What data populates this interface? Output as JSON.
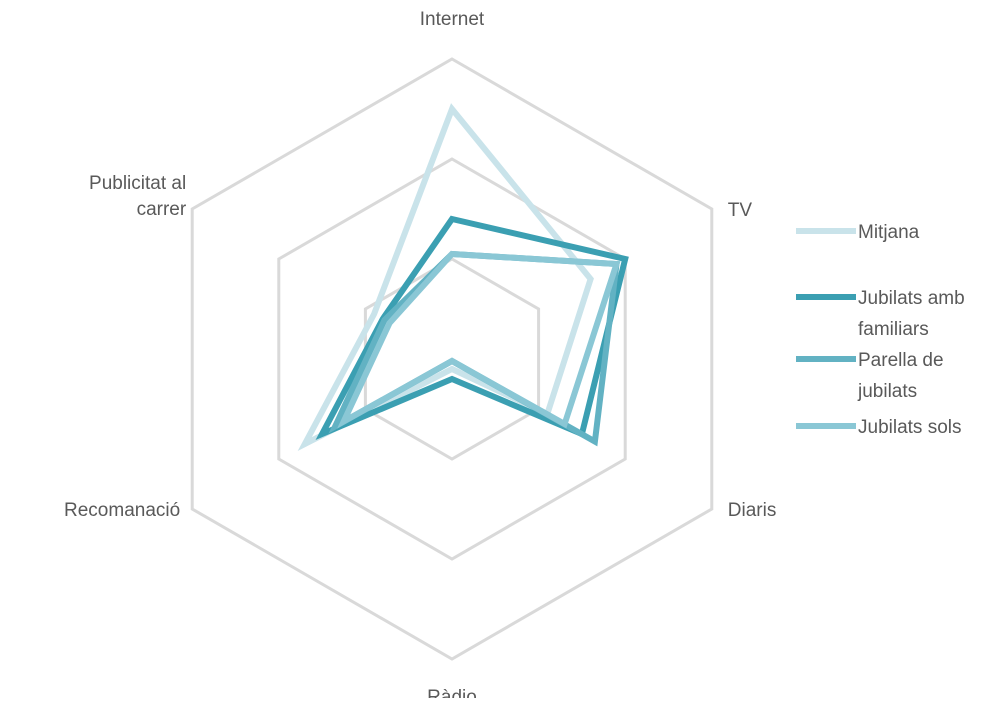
{
  "chart_data": {
    "type": "radar",
    "axes": [
      "Internet",
      "TV",
      "Diaris",
      "Ràdio",
      "Recomanació",
      "Publicitat al carrer"
    ],
    "axis_label_lines": [
      [
        "Internet"
      ],
      [
        "TV"
      ],
      [
        "Diaris"
      ],
      [
        "Ràdio"
      ],
      [
        "Recomanació"
      ],
      [
        "Publicitat al",
        "carrer"
      ]
    ],
    "rings": 3,
    "scale_max": 3,
    "grid_color": "#d9d9d9",
    "legend_position": "right",
    "series": [
      {
        "name": "Mitjana",
        "name_lines": [
          "Mitjana"
        ],
        "color": "#c9e3ea",
        "values": [
          2.5,
          1.6,
          1.1,
          0.1,
          1.7,
          0.9
        ]
      },
      {
        "name": "Jubilats amb familiars",
        "name_lines": [
          "Jubilats amb",
          "familiars"
        ],
        "color": "#3b9fb2",
        "values": [
          1.4,
          2.0,
          1.5,
          0.2,
          1.5,
          0.8
        ]
      },
      {
        "name": "Parella de jubilats",
        "name_lines": [
          "Parella de",
          "jubilats"
        ],
        "color": "#62b2c3",
        "values": [
          1.05,
          1.9,
          1.65,
          0.02,
          1.35,
          0.78
        ]
      },
      {
        "name": "Jubilats sols",
        "name_lines": [
          "Jubilats sols"
        ],
        "color": "#8ac7d5",
        "values": [
          1.05,
          1.9,
          1.3,
          0.02,
          1.25,
          0.72
        ]
      }
    ]
  }
}
